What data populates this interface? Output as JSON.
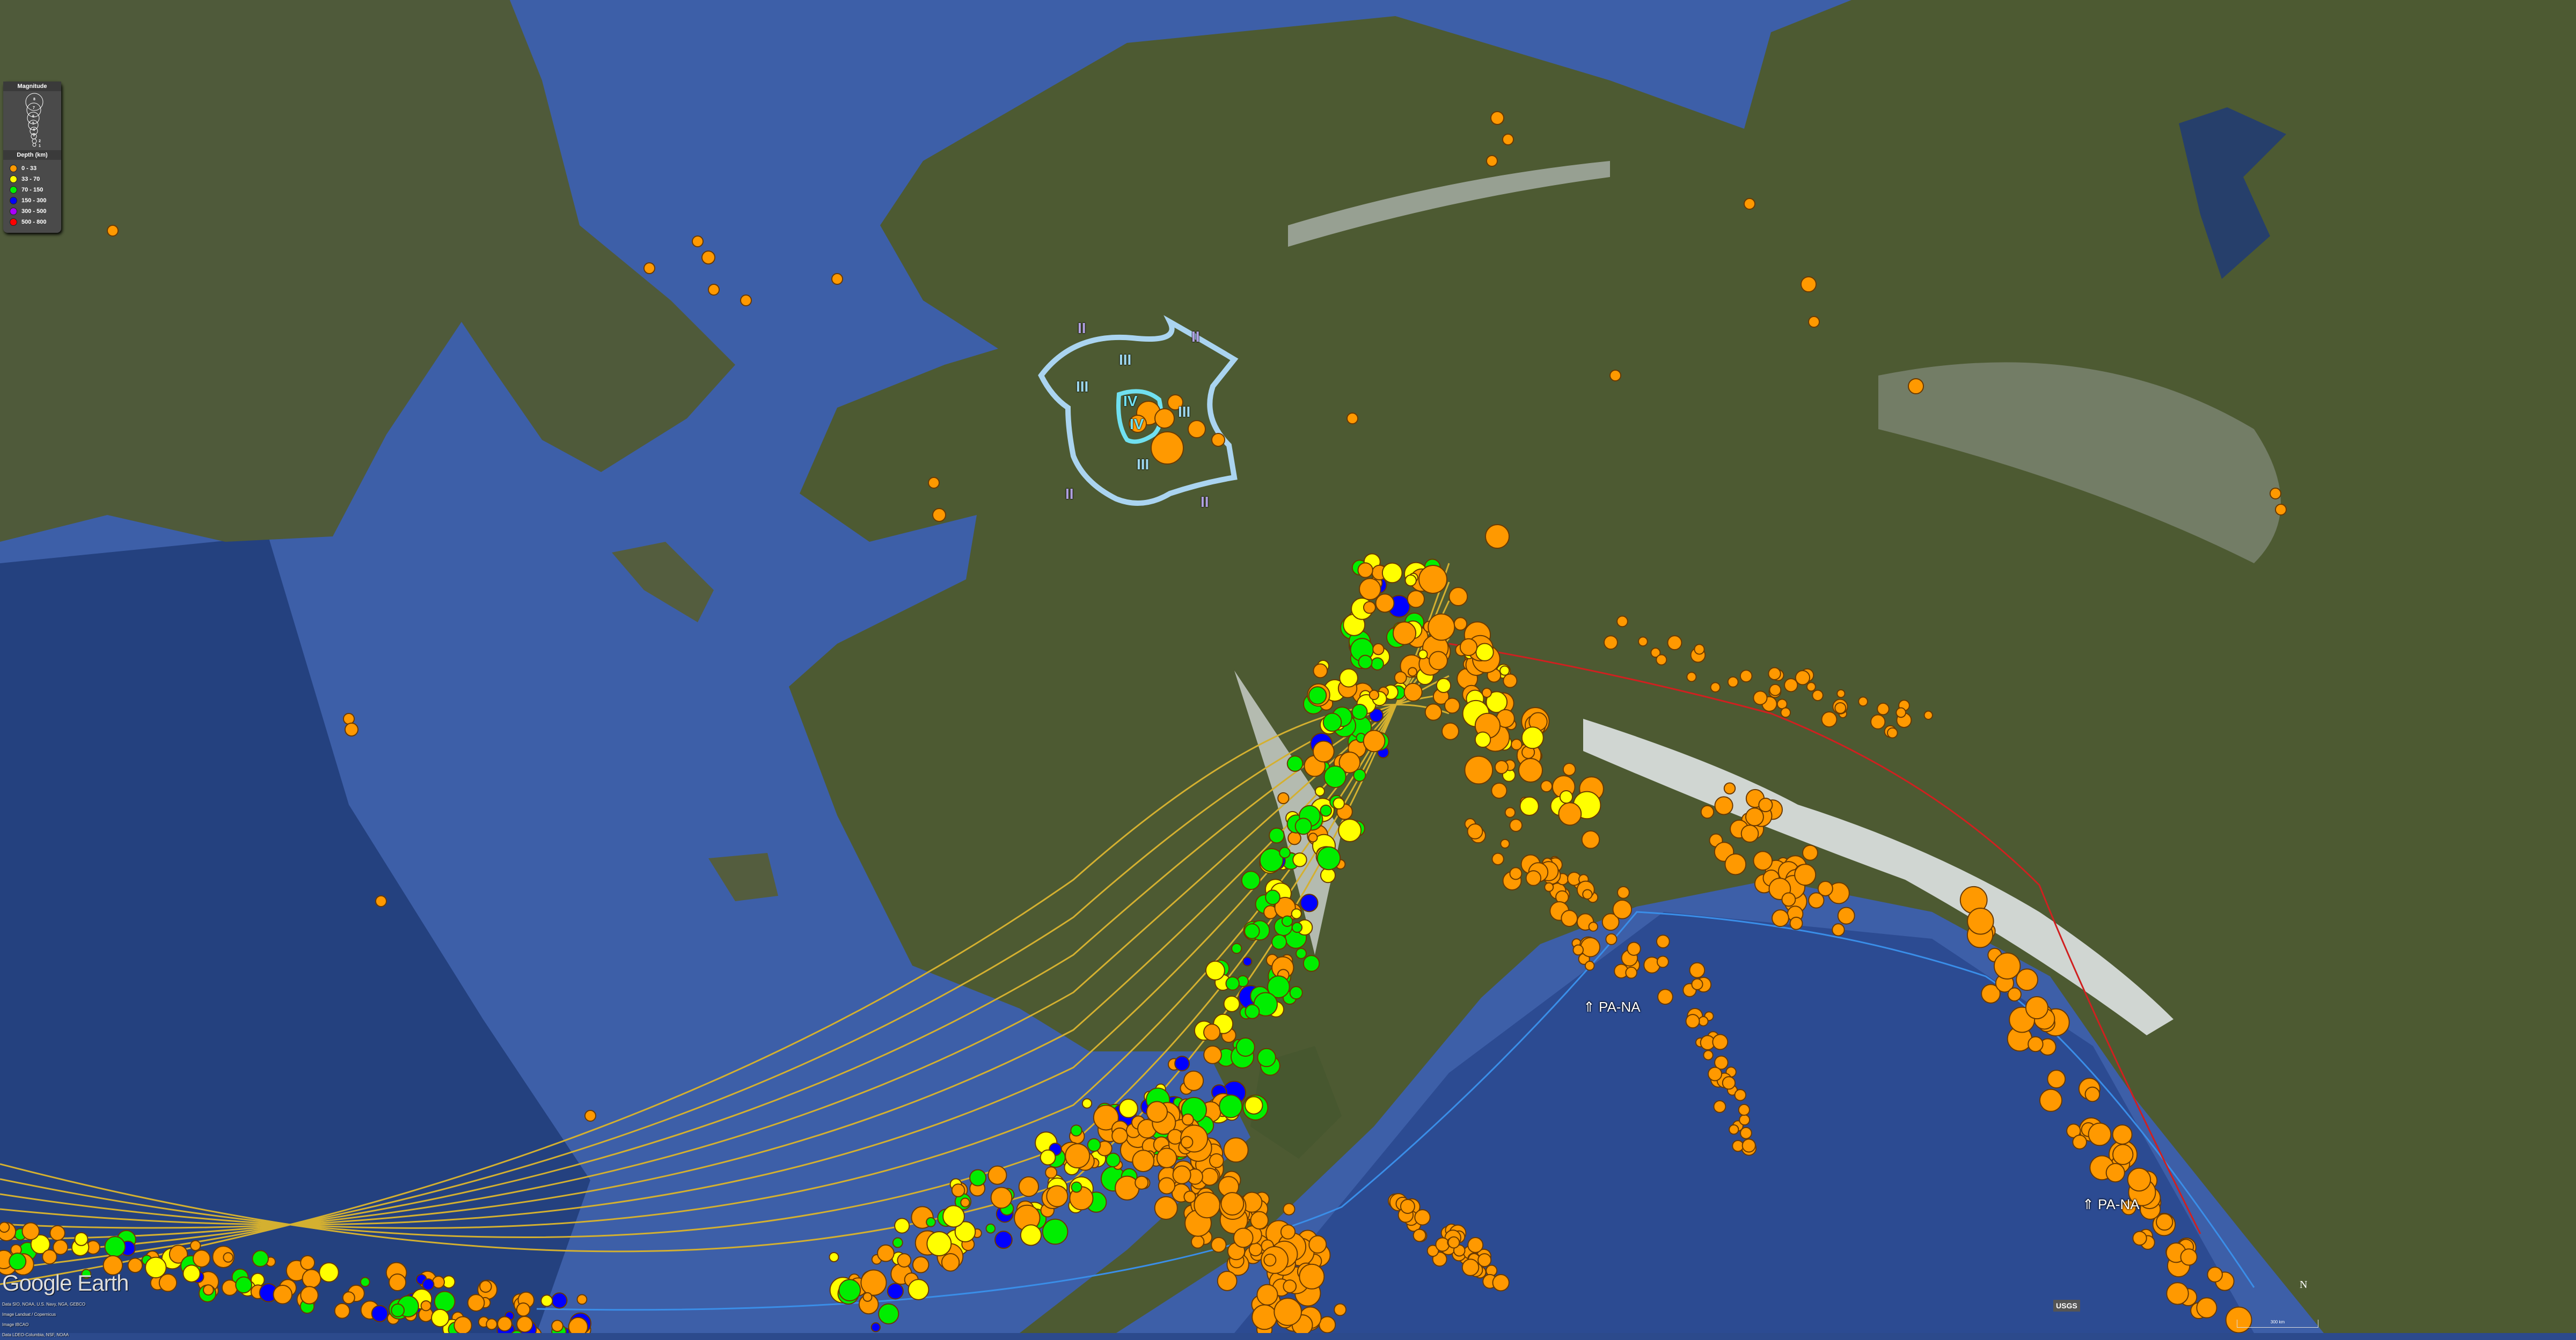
{
  "legend": {
    "magnitude_title": "Magnitude",
    "magnitudes": [
      "8",
      "7",
      "6",
      "5",
      "4",
      "3",
      "2",
      "1"
    ],
    "depth_title": "Depth (km)",
    "depth_classes": [
      {
        "label": "0 - 33",
        "color": "#ff9900"
      },
      {
        "label": "33 - 70",
        "color": "#ffff00"
      },
      {
        "label": "70 - 150",
        "color": "#00ee00"
      },
      {
        "label": "150 - 300",
        "color": "#0000ff"
      },
      {
        "label": "300 - 500",
        "color": "#aa00ff"
      },
      {
        "label": "500 - 800",
        "color": "#ff0000"
      }
    ]
  },
  "intensity_labels": [
    "II",
    "II",
    "III",
    "III",
    "IV",
    "IV",
    "III",
    "III",
    "II",
    "II"
  ],
  "plate_labels": [
    "PA-NA",
    "PA-NA"
  ],
  "attribution": {
    "brand": "Google Earth",
    "lines": [
      "Data SIO, NOAA, U.S. Navy, NGA, GEBCO",
      "Image Landsat / Copernicus",
      "Image IBCAO",
      "Data LDEO-Columbia, NSF, NOAA"
    ]
  },
  "usgs_logo": "USGS",
  "scale_bar": "300 km",
  "north_indicator": "N"
}
